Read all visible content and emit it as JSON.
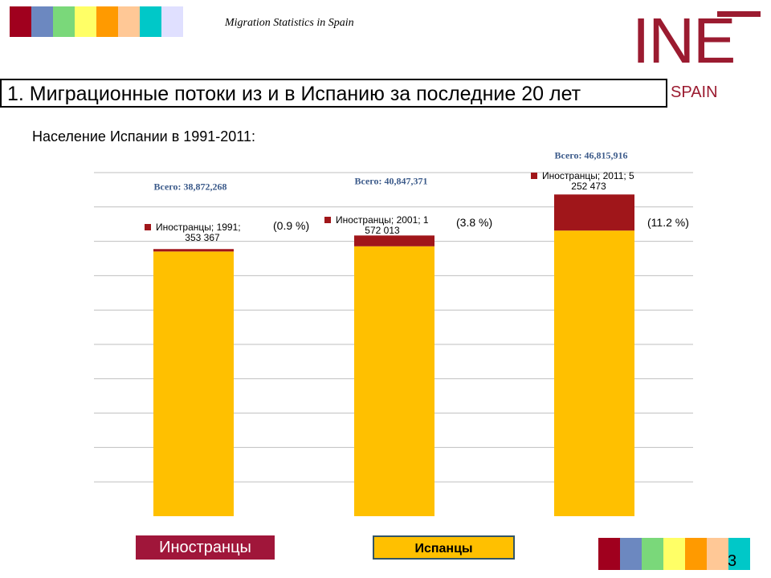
{
  "header": {
    "title": "Migration Statistics in Spain",
    "logo_text": "INE",
    "logo_subtitle": "SPAIN"
  },
  "swatch_colors": [
    "#a0001e",
    "#6c88c0",
    "#7ad87a",
    "#ffff66",
    "#ff9a00",
    "#ffc896",
    "#00c8c8",
    "#e0e0ff"
  ],
  "bottom_swatch_colors": [
    "#a0001e",
    "#6c88c0",
    "#7ad87a",
    "#ffff66",
    "#ff9a00",
    "#ffc896",
    "#00c8c8"
  ],
  "section_title": "1. Миграционные потоки из и в Испанию за последние 20 лет",
  "subtitle": "Население Испании в 1991-2011:",
  "legend": {
    "foreign": "Иностранцы",
    "spanish": "Испанцы"
  },
  "page_number": "3",
  "colors": {
    "foreign": "#a0161a",
    "spanish": "#ffc000",
    "total_label": "#3b5a8a",
    "brand": "#9b1b30"
  },
  "chart_data": {
    "type": "bar",
    "stacked": true,
    "categories": [
      "1991",
      "2001",
      "2011"
    ],
    "series": [
      {
        "name": "Испанцы",
        "values": [
          38518901,
          39275358,
          41563443
        ]
      },
      {
        "name": "Иностранцы",
        "values": [
          353367,
          1572013,
          5252473
        ]
      }
    ],
    "totals": [
      "Всего: 38,872,268",
      "Всего: 40,847,371",
      "Всего: 46,815,916"
    ],
    "foreign_labels": [
      [
        "Иностранцы; 1991;",
        "353 367"
      ],
      [
        "Иностранцы; 2001; 1",
        "572 013"
      ],
      [
        "Иностранцы; 2011; 5",
        "252 473"
      ]
    ],
    "shares": [
      "(0.9 %)",
      "(3.8 %)",
      "(11.2 %)"
    ],
    "grid": true,
    "legend_position": "bottom"
  }
}
